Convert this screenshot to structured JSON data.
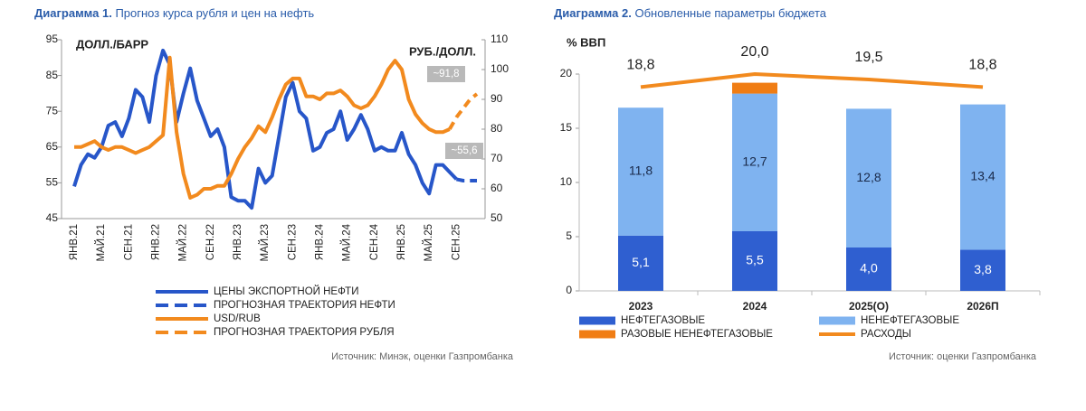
{
  "chart_data": [
    {
      "type": "line",
      "title_label": "Диаграмма 1.",
      "title": "Прогноз курса рубля и цен на нефть",
      "y_label": "ДОЛЛ./БАРР",
      "y2_label": "РУБ./ДОЛЛ.",
      "categories": [
        "ЯНВ.21",
        null,
        null,
        null,
        "МАЙ.21",
        null,
        null,
        null,
        "СЕН.21",
        null,
        null,
        null,
        "ЯНВ.22",
        null,
        null,
        null,
        "МАЙ.22",
        null,
        null,
        null,
        "СЕН.22",
        null,
        null,
        null,
        "ЯНВ.23",
        null,
        null,
        null,
        "МАЙ.23",
        null,
        null,
        null,
        "СЕН.23",
        null,
        null,
        null,
        "ЯНВ.24",
        null,
        null,
        null,
        "МАЙ.24",
        null,
        null,
        null,
        "СЕН.24",
        null,
        null,
        null,
        "ЯНВ.25",
        null,
        null,
        null,
        "МАЙ.25",
        null,
        null,
        null,
        "СЕН.25",
        null,
        null,
        null
      ],
      "series": [
        {
          "name": "ЦЕНЫ ЭКСПОРТНОЙ НЕФТИ",
          "color": "#2756c9",
          "dash": false,
          "axis": "y",
          "values": [
            54,
            60,
            63,
            62,
            65,
            71,
            72,
            68,
            73,
            81,
            79,
            72,
            85,
            92,
            88,
            72,
            80,
            87,
            78,
            73,
            68,
            70,
            65,
            51,
            50,
            50,
            48,
            59,
            55,
            57,
            68,
            79,
            83,
            75,
            73,
            64,
            65,
            69,
            70,
            75,
            67,
            70,
            74,
            70,
            64,
            65,
            64,
            64,
            69,
            63,
            60,
            55,
            52,
            60,
            60,
            58,
            56,
            null,
            null,
            null
          ]
        },
        {
          "name": "ПРОГНОЗНАЯ ТРАЕКТОРИЯ НЕФТИ",
          "color": "#2756c9",
          "dash": true,
          "axis": "y",
          "values": [
            null,
            null,
            null,
            null,
            null,
            null,
            null,
            null,
            null,
            null,
            null,
            null,
            null,
            null,
            null,
            null,
            null,
            null,
            null,
            null,
            null,
            null,
            null,
            null,
            null,
            null,
            null,
            null,
            null,
            null,
            null,
            null,
            null,
            null,
            null,
            null,
            null,
            null,
            null,
            null,
            null,
            null,
            null,
            null,
            null,
            null,
            null,
            null,
            null,
            null,
            null,
            null,
            null,
            null,
            null,
            null,
            56,
            55.6,
            55.6,
            55.6
          ]
        },
        {
          "name": "USD/RUB",
          "color": "#f28a1e",
          "dash": false,
          "axis": "y2",
          "values": [
            74,
            74,
            75,
            76,
            74,
            73,
            74,
            74,
            73,
            72,
            73,
            74,
            76,
            78,
            104,
            79,
            65,
            57,
            58,
            60,
            60,
            61,
            61,
            65,
            70,
            74,
            77,
            81,
            79,
            84,
            90,
            95,
            97,
            97,
            91,
            91,
            90,
            92,
            92,
            93,
            91,
            88,
            87,
            88,
            91,
            95,
            100,
            103,
            100,
            90,
            85,
            82,
            80,
            79,
            79,
            80,
            null,
            null,
            null,
            null
          ]
        },
        {
          "name": "ПРОГНОЗНАЯ ТРАЕКТОРИЯ РУБЛЯ",
          "color": "#f28a1e",
          "dash": true,
          "axis": "y2",
          "values": [
            null,
            null,
            null,
            null,
            null,
            null,
            null,
            null,
            null,
            null,
            null,
            null,
            null,
            null,
            null,
            null,
            null,
            null,
            null,
            null,
            null,
            null,
            null,
            null,
            null,
            null,
            null,
            null,
            null,
            null,
            null,
            null,
            null,
            null,
            null,
            null,
            null,
            null,
            null,
            null,
            null,
            null,
            null,
            null,
            null,
            null,
            null,
            null,
            null,
            null,
            null,
            null,
            null,
            null,
            null,
            80,
            84,
            87,
            90,
            91.8
          ]
        }
      ],
      "annotations": [
        "~91,8",
        "~55,6"
      ],
      "ylim": [
        45,
        95
      ],
      "yticks": [
        45,
        55,
        65,
        75,
        85,
        95
      ],
      "y2lim": [
        50,
        110
      ],
      "y2ticks": [
        50,
        60,
        70,
        80,
        90,
        100,
        110
      ],
      "source": "Источник: Минэк, оценки Газпромбанка"
    },
    {
      "type": "stacked_bar",
      "title_label": "Диаграмма 2.",
      "title": "Обновленные параметры бюджета",
      "y_label": "% ВВП",
      "categories": [
        "2023",
        "2024",
        "2025(О)",
        "2026П"
      ],
      "series": [
        {
          "name": "НЕФТЕГАЗОВЫЕ",
          "color": "#2f5fd0",
          "values": [
            5.1,
            5.5,
            4.0,
            3.8
          ],
          "value_labels": [
            "5,1",
            "5,5",
            "4,0",
            "3,8"
          ]
        },
        {
          "name": "НЕНЕФТЕГАЗОВЫЕ",
          "color": "#7fb3f0",
          "values": [
            11.8,
            12.7,
            12.8,
            13.4
          ],
          "value_labels": [
            "11,8",
            "12,7",
            "12,8",
            "13,4"
          ]
        },
        {
          "name": "РАЗОВЫЕ НЕНЕФТЕГАЗОВЫЕ",
          "color": "#f07d14",
          "values": [
            null,
            1.0,
            null,
            null
          ]
        },
        {
          "name": "РАСХОДЫ",
          "color": "#f28a1e",
          "kind": "line",
          "values": [
            18.8,
            20.0,
            19.5,
            18.8
          ],
          "value_labels": [
            "18,8",
            "20,0",
            "19,5",
            "18,8"
          ]
        }
      ],
      "ylim": [
        0,
        20
      ],
      "yticks": [
        0,
        5,
        10,
        15,
        20
      ],
      "source": "Источник: оценки Газпромбанка"
    }
  ]
}
